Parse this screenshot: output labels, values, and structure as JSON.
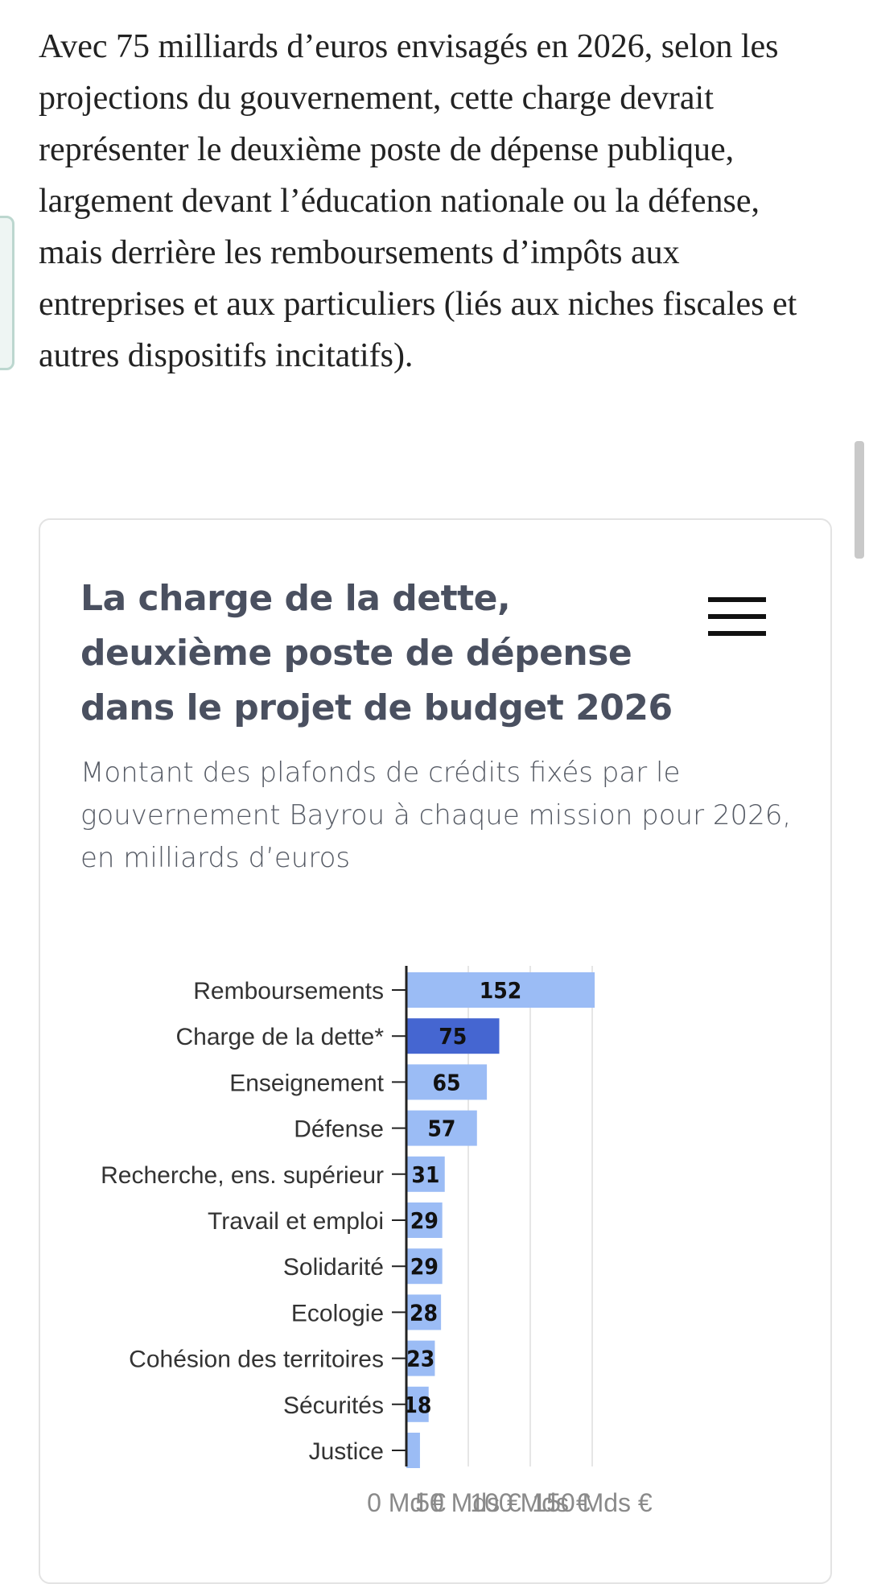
{
  "article": {
    "paragraph": "Avec 75 milliards d’euros envisagés en 2026, selon les projections du gouvernement, cette charge devrait représenter le deuxième poste de dépense publique, largement devant l’éducation nationale ou la défense, mais derrière les remboursements d’impôts aux entreprises et aux particuliers (liés aux niches fiscales et autres dispositifs incitatifs)."
  },
  "chart_card": {
    "menu_icon": "hamburger-menu-icon"
  },
  "colors": {
    "highlight": "#4566d1",
    "bar": "#9bbcf5",
    "title": "#4a5060"
  },
  "chart_data": {
    "type": "bar",
    "orientation": "horizontal",
    "title": "La charge de la dette, deuxième poste de dépense dans le projet de budget 2026",
    "subtitle": "Montant des plafonds de crédits fixés par le gouvernement Bayrou à chaque mission pour 2026, en milliards d’euros",
    "categories": [
      "Remboursements",
      "Charge de la dette*",
      "Enseignement",
      "Défense",
      "Recherche, ens. supérieur",
      "Travail et emploi",
      "Solidarité",
      "Ecologie",
      "Cohésion des territoires",
      "Sécurités",
      "Justice"
    ],
    "values": [
      152,
      75,
      65,
      57,
      31,
      29,
      29,
      28,
      23,
      18,
      11
    ],
    "value_labels": [
      "152",
      "75",
      "65",
      "57",
      "31",
      "29",
      "29",
      "28",
      "23",
      "18",
      ""
    ],
    "highlight_index": 1,
    "xlim": [
      0,
      150
    ],
    "x_ticks": [
      0,
      50,
      100,
      150
    ],
    "x_tick_labels": [
      "0 Md €",
      "50 Mds €",
      "100 Mds €",
      "150 Mds €"
    ],
    "grid": true,
    "xlabel": "",
    "ylabel": ""
  }
}
